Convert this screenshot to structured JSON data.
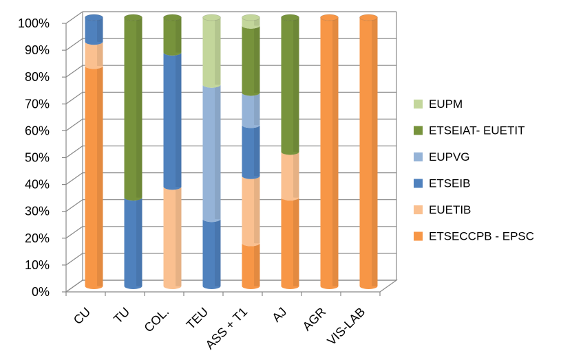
{
  "chart_data": {
    "type": "bar",
    "stacked": true,
    "percent": true,
    "categories": [
      "CU",
      "TU",
      "COL.",
      "TEU",
      "ASS + T1",
      "AJ",
      "AGR",
      "VIS-LAB"
    ],
    "y_ticks": [
      "0%",
      "10%",
      "20%",
      "30%",
      "40%",
      "50%",
      "60%",
      "70%",
      "80%",
      "90%",
      "100%"
    ],
    "ylim": [
      0,
      100
    ],
    "grid": true,
    "legend_position": "right",
    "series": [
      {
        "name": "ETSECCPB - EPSC",
        "color": "#F79646",
        "values": [
          82,
          0,
          0,
          0,
          16,
          33,
          100,
          100
        ]
      },
      {
        "name": "EUETIB",
        "color": "#FAC090",
        "values": [
          9,
          0,
          37,
          0,
          25,
          17,
          0,
          0
        ]
      },
      {
        "name": "ETSEIB",
        "color": "#4F81BD",
        "values": [
          9,
          33,
          50,
          25,
          19,
          0,
          0,
          0
        ]
      },
      {
        "name": "EUPVG",
        "color": "#95B3D7",
        "values": [
          0,
          0,
          0,
          50,
          12,
          0,
          0,
          0
        ]
      },
      {
        "name": "ETSEIAT- EUETIT",
        "color": "#77933C",
        "values": [
          0,
          67,
          13,
          0,
          25,
          50,
          0,
          0
        ]
      },
      {
        "name": "EUPM",
        "color": "#C3D69B",
        "values": [
          0,
          0,
          0,
          25,
          3,
          0,
          0,
          0
        ]
      }
    ],
    "legend_order": [
      "EUPM",
      "ETSEIAT- EUETIT",
      "EUPVG",
      "ETSEIB",
      "EUETIB",
      "ETSECCPB - EPSC"
    ]
  }
}
